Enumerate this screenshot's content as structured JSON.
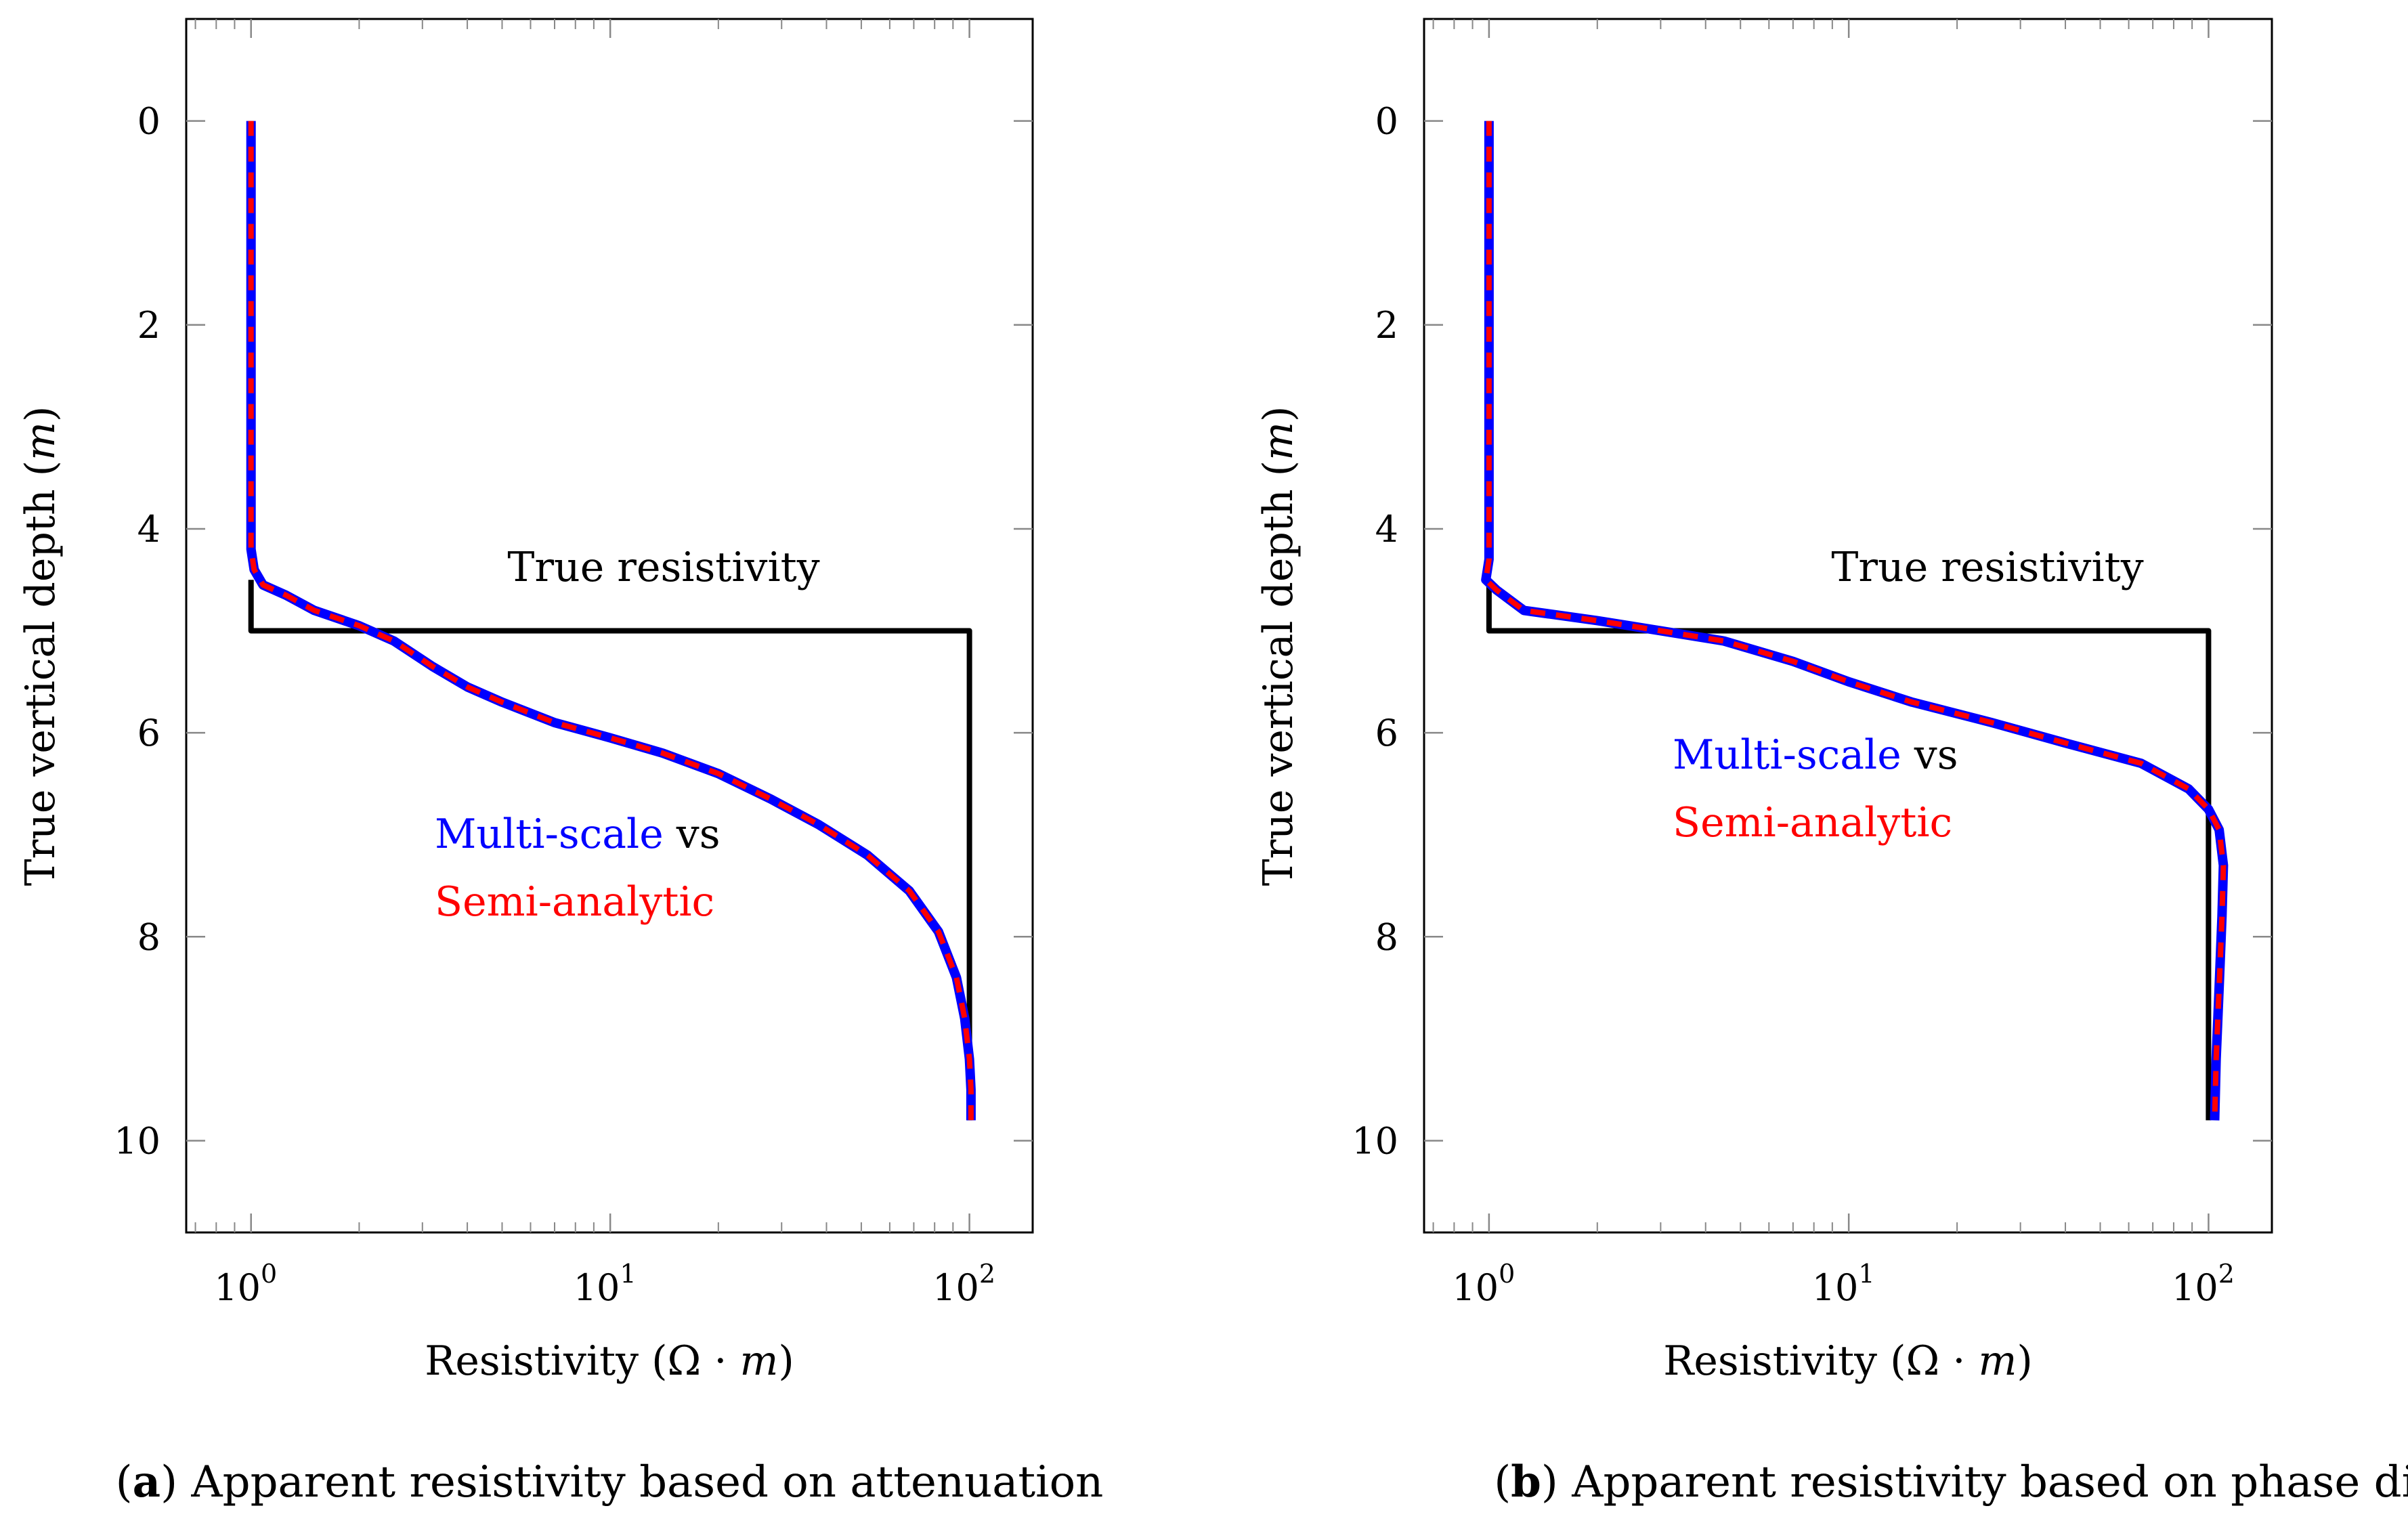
{
  "chart_data": [
    {
      "id": "a",
      "type": "line",
      "xscale": "log",
      "xlim": [
        0.66,
        150.0
      ],
      "ylim": [
        -1,
        10.9
      ],
      "y_inverted": true,
      "xticks": [
        {
          "value": 1,
          "base": "10",
          "exp": "0"
        },
        {
          "value": 10,
          "base": "10",
          "exp": "1"
        },
        {
          "value": 100,
          "base": "10",
          "exp": "2"
        }
      ],
      "yticks": [
        0,
        2,
        4,
        6,
        8,
        10
      ],
      "xlabel": {
        "main": "Resistivity (Ω · ",
        "var": "m",
        "close": ")"
      },
      "ylabel": {
        "main": "True vertical depth (",
        "var": "m",
        "close": ")"
      },
      "caption": {
        "label": "a",
        "text": "Apparent resistivity based on attenuation"
      },
      "annotations": {
        "true_label": "True resistivity",
        "ms_label": "Multi-scale",
        "vs_label": " vs",
        "sa_label": "Semi-analytic"
      },
      "series": [
        {
          "name": "True resistivity",
          "color": "#000000",
          "x": [
            1,
            1,
            100,
            100
          ],
          "y": [
            4.5,
            5.0,
            5.0,
            9.8
          ]
        },
        {
          "name": "Multi-scale",
          "color": "#0000ff",
          "x": [
            1.0,
            1.0,
            1.0,
            1.02,
            1.08,
            1.25,
            1.5,
            2.0,
            2.5,
            3.2,
            4.0,
            5.0,
            7.0,
            10.0,
            14.0,
            20.0,
            28.0,
            38.0,
            52.0,
            68.0,
            82.0,
            92.0,
            97.0,
            100.0,
            101.0,
            101.0
          ],
          "y": [
            0.0,
            2.0,
            4.2,
            4.4,
            4.55,
            4.65,
            4.8,
            4.95,
            5.1,
            5.35,
            5.55,
            5.7,
            5.9,
            6.05,
            6.2,
            6.4,
            6.65,
            6.9,
            7.2,
            7.55,
            7.95,
            8.4,
            8.8,
            9.2,
            9.5,
            9.8
          ]
        },
        {
          "name": "Semi-analytic",
          "color": "#ff0000",
          "x": [
            1.0,
            1.0,
            1.0,
            1.02,
            1.08,
            1.25,
            1.5,
            2.0,
            2.5,
            3.2,
            4.0,
            5.0,
            7.0,
            10.0,
            14.0,
            20.0,
            28.0,
            38.0,
            52.0,
            68.0,
            82.0,
            92.0,
            97.0,
            100.0,
            101.0,
            101.0
          ],
          "y": [
            0.0,
            2.0,
            4.2,
            4.4,
            4.55,
            4.65,
            4.8,
            4.95,
            5.1,
            5.35,
            5.55,
            5.7,
            5.9,
            6.05,
            6.2,
            6.4,
            6.65,
            6.9,
            7.2,
            7.55,
            7.95,
            8.4,
            8.8,
            9.2,
            9.5,
            9.8
          ]
        }
      ]
    },
    {
      "id": "b",
      "type": "line",
      "xscale": "log",
      "xlim": [
        0.66,
        150.0
      ],
      "ylim": [
        -1,
        10.9
      ],
      "y_inverted": true,
      "xticks": [
        {
          "value": 1,
          "base": "10",
          "exp": "0"
        },
        {
          "value": 10,
          "base": "10",
          "exp": "1"
        },
        {
          "value": 100,
          "base": "10",
          "exp": "2"
        }
      ],
      "yticks": [
        0,
        2,
        4,
        6,
        8,
        10
      ],
      "xlabel": {
        "main": "Resistivity (Ω · ",
        "var": "m",
        "close": ")"
      },
      "ylabel": {
        "main": "True vertical depth (",
        "var": "m",
        "close": ")"
      },
      "caption": {
        "label": "b",
        "text": "Apparent resistivity based on phase difference"
      },
      "annotations": {
        "true_label": "True resistivity",
        "ms_label": "Multi-scale",
        "vs_label": " vs",
        "sa_label": "Semi-analytic"
      },
      "series": [
        {
          "name": "True resistivity",
          "color": "#000000",
          "x": [
            1,
            1,
            100,
            100
          ],
          "y": [
            4.5,
            5.0,
            5.0,
            9.8
          ]
        },
        {
          "name": "Multi-scale",
          "color": "#0000ff",
          "x": [
            1.0,
            1.0,
            1.0,
            0.98,
            1.05,
            1.25,
            2.0,
            3.0,
            4.5,
            7.0,
            10.0,
            15.0,
            25.0,
            40.0,
            65.0,
            88.0,
            100.0,
            107.0,
            110.0,
            109.0,
            107.0,
            105.0,
            104.0
          ],
          "y": [
            0.0,
            2.0,
            4.3,
            4.5,
            4.6,
            4.8,
            4.9,
            5.0,
            5.1,
            5.3,
            5.5,
            5.7,
            5.9,
            6.1,
            6.3,
            6.55,
            6.75,
            6.95,
            7.3,
            7.8,
            8.5,
            9.2,
            9.8
          ]
        },
        {
          "name": "Semi-analytic",
          "color": "#ff0000",
          "x": [
            1.0,
            1.0,
            1.0,
            0.98,
            1.05,
            1.25,
            2.0,
            3.0,
            4.5,
            7.0,
            10.0,
            15.0,
            25.0,
            40.0,
            65.0,
            88.0,
            100.0,
            107.0,
            110.0,
            109.0,
            107.0,
            105.0,
            104.0
          ],
          "y": [
            0.0,
            2.0,
            4.3,
            4.5,
            4.6,
            4.8,
            4.9,
            5.0,
            5.1,
            5.3,
            5.5,
            5.7,
            5.9,
            6.1,
            6.3,
            6.55,
            6.75,
            6.95,
            7.3,
            7.8,
            8.5,
            9.2,
            9.8
          ]
        }
      ]
    }
  ]
}
